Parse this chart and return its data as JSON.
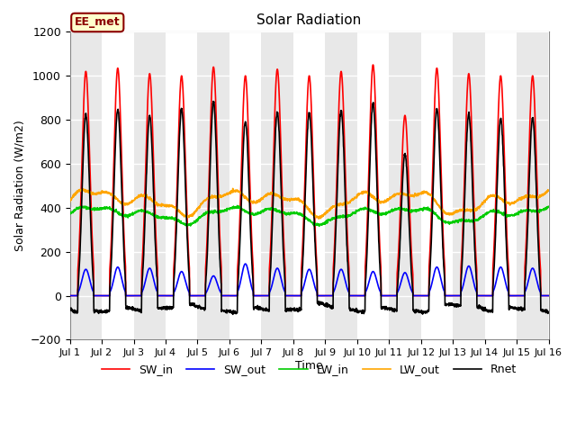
{
  "title": "Solar Radiation",
  "xlabel": "Time",
  "ylabel": "Solar Radiation (W/m2)",
  "ylim": [
    -200,
    1200
  ],
  "xlim": [
    0,
    15
  ],
  "yticks": [
    -200,
    0,
    200,
    400,
    600,
    800,
    1000,
    1200
  ],
  "xtick_labels": [
    "Jul 1",
    "Jul 2",
    "Jul 3",
    "Jul 4",
    "Jul 5",
    "Jul 6",
    "Jul 7",
    "Jul 8",
    "Jul 9",
    "Jul 10",
    "Jul 11",
    "Jul 12",
    "Jul 13",
    "Jul 14",
    "Jul 15",
    "Jul 16"
  ],
  "xtick_positions": [
    0,
    1,
    2,
    3,
    4,
    5,
    6,
    7,
    8,
    9,
    10,
    11,
    12,
    13,
    14,
    15
  ],
  "annotation": "EE_met",
  "annotation_bg": "#FFFFCC",
  "annotation_border": "#8B0000",
  "background_color": "#FFFFFF",
  "plot_bg": "#FFFFFF",
  "grid_color": "#CCCCCC",
  "lines": {
    "SW_in": {
      "color": "#FF0000",
      "lw": 1.2
    },
    "SW_out": {
      "color": "#0000FF",
      "lw": 1.2
    },
    "LW_in": {
      "color": "#00CC00",
      "lw": 1.2
    },
    "LW_out": {
      "color": "#FFA500",
      "lw": 1.2
    },
    "Rnet": {
      "color": "#000000",
      "lw": 1.2
    }
  },
  "n_days": 15,
  "points_per_day": 144,
  "SW_in_peak": [
    1020,
    1035,
    1010,
    1000,
    1040,
    1000,
    1030,
    1000,
    1020,
    1050,
    820,
    1035,
    1010,
    1000,
    1000
  ],
  "SW_out_peak": [
    120,
    130,
    125,
    110,
    90,
    145,
    125,
    120,
    120,
    110,
    105,
    130,
    135,
    130,
    125
  ],
  "LW_in_base": 370,
  "LW_out_base": 430,
  "stripe_colors": [
    "#E8E8E8",
    "#F5F5F5"
  ]
}
